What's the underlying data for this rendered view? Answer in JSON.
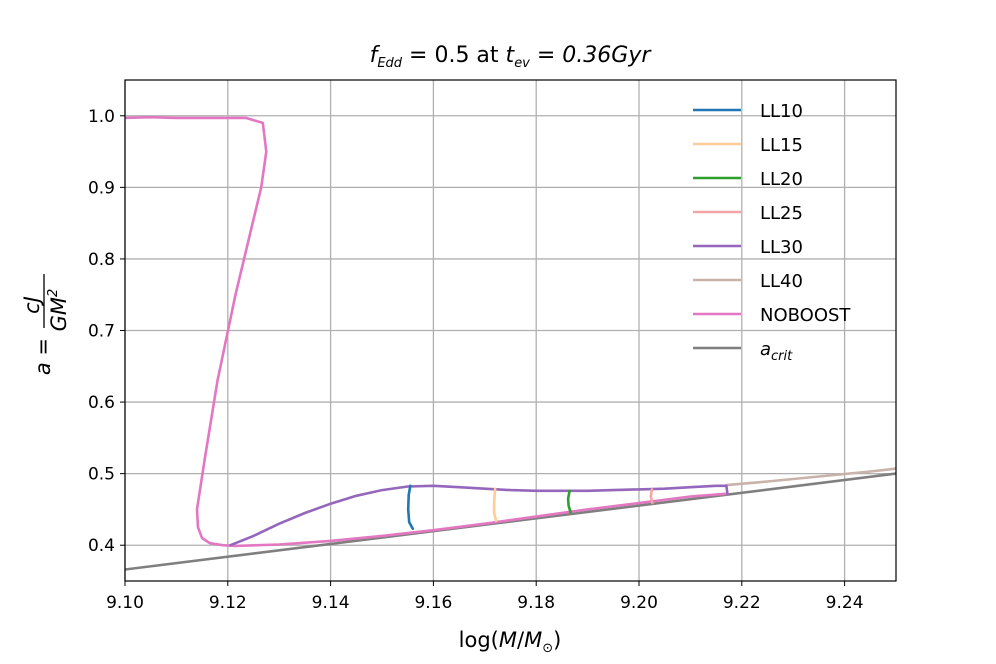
{
  "chart_data": {
    "type": "line",
    "title_parts": {
      "f_var": "f",
      "f_sub": "Edd",
      "middle": " = 0.5 at ",
      "t_var": "t",
      "t_sub": "ev",
      "end": " = 0.36Gyr"
    },
    "xlabel": "log(M/M⊙)",
    "ylabel": "a = cJ / GM²",
    "ylabel_parts": {
      "lhs": "a =",
      "num": "cJ",
      "den": "GM",
      "den_exp": "2"
    },
    "xlim": [
      9.1,
      9.25
    ],
    "ylim": [
      0.35,
      1.05
    ],
    "xticks": [
      "9.10",
      "9.12",
      "9.14",
      "9.16",
      "9.18",
      "9.20",
      "9.22",
      "9.24"
    ],
    "yticks": [
      "0.4",
      "0.5",
      "0.6",
      "0.7",
      "0.8",
      "0.9",
      "1.0"
    ],
    "grid": true,
    "legend_position": "top-right",
    "series": [
      {
        "name": "LL10",
        "color": "#1f77b4",
        "x": [
          9.1555,
          9.1552,
          9.1551,
          9.1553,
          9.156
        ],
        "y": [
          0.483,
          0.47,
          0.45,
          0.432,
          0.423
        ]
      },
      {
        "name": "LL15",
        "color": "#ffcc99",
        "x": [
          9.172,
          9.1718,
          9.1718,
          9.1722
        ],
        "y": [
          0.479,
          0.46,
          0.445,
          0.434
        ]
      },
      {
        "name": "LL20",
        "color": "#2ca02c",
        "x": [
          9.1865,
          9.1862,
          9.1863,
          9.1867
        ],
        "y": [
          0.476,
          0.465,
          0.455,
          0.446
        ]
      },
      {
        "name": "LL25",
        "color": "#f4a6a6",
        "x": [
          9.2025,
          9.2023,
          9.2026
        ],
        "y": [
          0.478,
          0.468,
          0.459
        ]
      },
      {
        "name": "LL30",
        "color": "#9467bd",
        "x": [
          9.1205,
          9.125,
          9.13,
          9.135,
          9.14,
          9.145,
          9.15,
          9.155,
          9.16,
          9.165,
          9.17,
          9.175,
          9.18,
          9.185,
          9.19,
          9.195,
          9.2,
          9.205,
          9.21,
          9.215,
          9.217,
          9.2172
        ],
        "y": [
          0.4,
          0.413,
          0.43,
          0.445,
          0.458,
          0.469,
          0.477,
          0.482,
          0.483,
          0.481,
          0.479,
          0.477,
          0.476,
          0.476,
          0.476,
          0.477,
          0.478,
          0.479,
          0.481,
          0.483,
          0.483,
          0.472
        ]
      },
      {
        "name": "LL40",
        "color": "#c9b2aa",
        "x": [
          9.217,
          9.225,
          9.235,
          9.245,
          9.25
        ],
        "y": [
          0.484,
          0.489,
          0.496,
          0.503,
          0.507
        ]
      },
      {
        "name": "NOBOOST",
        "color": "#e377c2",
        "x": [
          9.1,
          9.105,
          9.11,
          9.114,
          9.118,
          9.1235,
          9.1268,
          9.1275,
          9.1265,
          9.1245,
          9.1215,
          9.118,
          9.1155,
          9.114,
          9.1142,
          9.115,
          9.1165,
          9.119,
          9.1215,
          9.13,
          9.14,
          9.15,
          9.16,
          9.17,
          9.18,
          9.19,
          9.2,
          9.21,
          9.2172
        ],
        "y": [
          0.997,
          0.998,
          0.997,
          0.997,
          0.997,
          0.997,
          0.99,
          0.95,
          0.9,
          0.84,
          0.75,
          0.63,
          0.52,
          0.45,
          0.425,
          0.41,
          0.403,
          0.4,
          0.399,
          0.401,
          0.406,
          0.413,
          0.421,
          0.43,
          0.44,
          0.45,
          0.459,
          0.468,
          0.472
        ]
      },
      {
        "name": "a_crit",
        "legend_base": "a",
        "legend_sub": "crit",
        "color": "#7f7f7f",
        "x": [
          9.1,
          9.25
        ],
        "y": [
          0.366,
          0.5
        ]
      }
    ]
  }
}
